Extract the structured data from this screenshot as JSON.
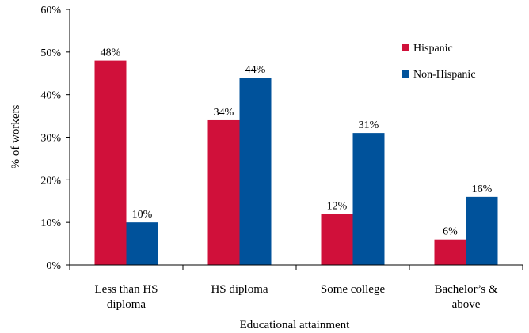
{
  "chart_data": {
    "type": "bar",
    "title": "",
    "xlabel": "Educational attainment",
    "ylabel": "% of workers",
    "ylim": [
      0,
      60
    ],
    "yticks": [
      0,
      10,
      20,
      30,
      40,
      50,
      60
    ],
    "ytick_labels": [
      "0%",
      "10%",
      "20%",
      "30%",
      "40%",
      "50%",
      "60%"
    ],
    "categories": [
      [
        "Less than HS",
        "diploma"
      ],
      [
        "HS diploma"
      ],
      [
        "Some college"
      ],
      [
        "Bachelor’s &",
        "above"
      ]
    ],
    "series": [
      {
        "name": "Hispanic",
        "color": "#d0103a",
        "values": [
          48,
          34,
          12,
          6
        ],
        "labels": [
          "48%",
          "34%",
          "12%",
          "6%"
        ]
      },
      {
        "name": "Non-Hispanic",
        "color": "#00529b",
        "values": [
          10,
          44,
          31,
          16
        ],
        "labels": [
          "10%",
          "44%",
          "31%",
          "16%"
        ]
      }
    ],
    "grid": false,
    "legend_position": "top-right"
  }
}
